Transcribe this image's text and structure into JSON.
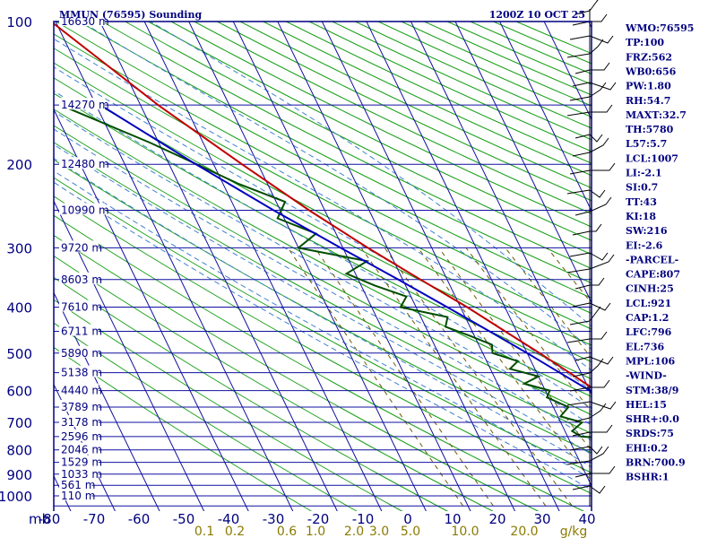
{
  "header": {
    "station": "MMUN (76595) Sounding",
    "time": "1200Z 10 OCT 25"
  },
  "chart_data": {
    "type": "skew-t",
    "pressure_axis": {
      "unit_label": "mb",
      "ticks": [
        100,
        200,
        300,
        400,
        500,
        600,
        700,
        800,
        900,
        1000
      ],
      "range": [
        100,
        1000
      ],
      "log_scale": true
    },
    "temperature_axis": {
      "ticks": [
        -80,
        -70,
        -60,
        -50,
        -40,
        -30,
        -20,
        -10,
        0,
        10,
        20,
        30,
        40
      ],
      "labels": [
        "-80",
        "-70",
        "-60",
        "-50",
        "-40",
        "-30",
        "-20",
        "-10",
        "0",
        "10",
        "20",
        "30",
        "40"
      ],
      "skewed": true
    },
    "mixing_ratio_axis": {
      "unit_label": "g/kg",
      "ticks": [
        0.1,
        0.2,
        0.6,
        1.0,
        2.0,
        3.0,
        5.0,
        10.0,
        20.0
      ],
      "labels": [
        "0.1",
        "0.2",
        "0.6",
        "1.0",
        "2.0",
        "3.0",
        "5.0",
        "10.0",
        "20.0"
      ],
      "color": "#8b7a00"
    },
    "height_labels": [
      {
        "p": 100,
        "label": "16630 m"
      },
      {
        "p": 150,
        "label": "14270 m"
      },
      {
        "p": 200,
        "label": "12480 m"
      },
      {
        "p": 250,
        "label": "10990 m"
      },
      {
        "p": 300,
        "label": "9720 m"
      },
      {
        "p": 350,
        "label": "8603 m"
      },
      {
        "p": 400,
        "label": "7610 m"
      },
      {
        "p": 450,
        "label": "6711 m"
      },
      {
        "p": 500,
        "label": "5890 m"
      },
      {
        "p": 550,
        "label": "5138 m"
      },
      {
        "p": 600,
        "label": "4440 m"
      },
      {
        "p": 650,
        "label": "3789 m"
      },
      {
        "p": 700,
        "label": "3178 m"
      },
      {
        "p": 750,
        "label": "2596 m"
      },
      {
        "p": 800,
        "label": "2046 m"
      },
      {
        "p": 850,
        "label": "1529 m"
      },
      {
        "p": 900,
        "label": "1033 m"
      },
      {
        "p": 950,
        "label": "561 m"
      },
      {
        "p": 1000,
        "label": "110 m"
      }
    ],
    "series": [
      {
        "name": "Temperature",
        "color": "#c00000",
        "points": [
          [
            1000,
            26.4
          ],
          [
            990,
            22.4
          ],
          [
            975,
            23.6
          ],
          [
            950,
            21.8
          ],
          [
            925,
            20.6
          ],
          [
            900,
            18.6
          ],
          [
            850,
            15.6
          ],
          [
            800,
            13.0
          ],
          [
            750,
            10.8
          ],
          [
            700,
            8.2
          ],
          [
            650,
            4.6
          ],
          [
            600,
            1.4
          ],
          [
            550,
            -2.6
          ],
          [
            500,
            -7.2
          ],
          [
            450,
            -12.6
          ],
          [
            400,
            -18.5
          ],
          [
            350,
            -26.0
          ],
          [
            300,
            -34.4
          ],
          [
            250,
            -43.5
          ],
          [
            200,
            -53.6
          ],
          [
            150,
            -66.0
          ],
          [
            100,
            -81.0
          ]
        ]
      },
      {
        "name": "Dewpoint",
        "color": "#004d00",
        "points": [
          [
            1000,
            20.8
          ],
          [
            975,
            19.6
          ],
          [
            950,
            18.0
          ],
          [
            925,
            16.5
          ],
          [
            900,
            14.8
          ],
          [
            850,
            10.6
          ],
          [
            800,
            6.4
          ],
          [
            760,
            2.5
          ],
          [
            750,
            -7.0
          ],
          [
            730,
            -8.4
          ],
          [
            700,
            -5.2
          ],
          [
            680,
            -9.4
          ],
          [
            650,
            -6.6
          ],
          [
            620,
            -10.4
          ],
          [
            600,
            -9.0
          ],
          [
            580,
            -14.0
          ],
          [
            560,
            -10.0
          ],
          [
            540,
            -15.6
          ],
          [
            520,
            -13.0
          ],
          [
            500,
            -17.8
          ],
          [
            480,
            -17.0
          ],
          [
            460,
            -21.0
          ],
          [
            440,
            -25.5
          ],
          [
            420,
            -24.0
          ],
          [
            400,
            -33.5
          ],
          [
            380,
            -31.0
          ],
          [
            360,
            -37.0
          ],
          [
            340,
            -42.0
          ],
          [
            320,
            -36.0
          ],
          [
            300,
            -50.0
          ],
          [
            280,
            -44.5
          ],
          [
            260,
            -51.5
          ],
          [
            240,
            -48.0
          ],
          [
            220,
            -56.5
          ],
          [
            200,
            -63.8
          ],
          [
            180,
            -72.0
          ],
          [
            150,
            -88.0
          ]
        ]
      },
      {
        "name": "Parcel",
        "color": "#0000c0",
        "points": [
          [
            1000,
            26.4
          ],
          [
            950,
            22.2
          ],
          [
            921,
            20.8
          ],
          [
            900,
            19.8
          ],
          [
            850,
            17.6
          ],
          [
            800,
            14.9
          ],
          [
            750,
            11.6
          ],
          [
            700,
            8.0
          ],
          [
            650,
            4.2
          ],
          [
            600,
            0.0
          ],
          [
            550,
            -4.8
          ],
          [
            500,
            -10.0
          ],
          [
            450,
            -16.1
          ],
          [
            400,
            -23.0
          ],
          [
            350,
            -31.0
          ],
          [
            300,
            -40.5
          ],
          [
            250,
            -51.5
          ],
          [
            200,
            -64.0
          ],
          [
            150,
            -79.0
          ]
        ]
      }
    ]
  },
  "indices": [
    "WMO:76595",
    "TP:100",
    "FRZ:562",
    "WB0:656",
    "PW:1.80",
    "RH:54.7",
    "MAXT:32.7",
    "TH:5780",
    "L57:5.7",
    "LCL:1007",
    "LI:-2.1",
    "SI:0.7",
    "TT:43",
    "KI:18",
    "SW:216",
    "EI:-2.6",
    "-PARCEL-",
    "CAPE:807",
    "CINH:25",
    "LCL:921",
    "CAP:1.2",
    "LFC:796",
    "EL:736",
    "MPL:106",
    "-WIND-",
    "STM:38/9",
    "HEL:15",
    "SHR+:0.0",
    "SRDS:75",
    "EHI:0.2",
    "BRN:700.9",
    "BSHR:1"
  ],
  "colors": {
    "frame": "#000080",
    "isobar": "#1010a0",
    "isotherm": "#1010a0",
    "dry_adiabat": "#1aa01a",
    "moist_adiabat": "#4080d0",
    "mixing_ratio": "#6b5a00",
    "wind": "#000000"
  }
}
